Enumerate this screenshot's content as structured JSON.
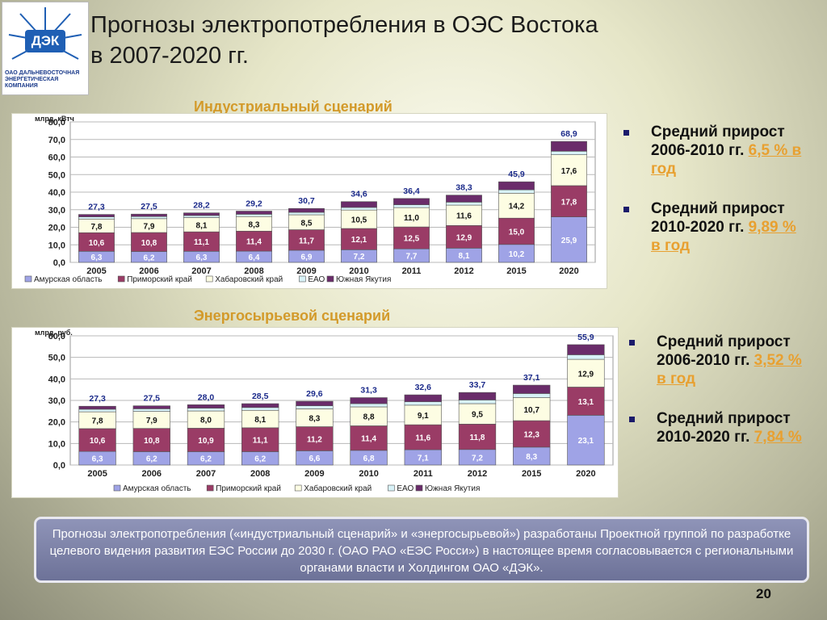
{
  "logo": {
    "abbr": "ДЭК",
    "caption": "ОАО Дальневосточная энергетическая компания"
  },
  "title": {
    "line1": "Прогнозы электропотребления в ОЭС Востока",
    "line2": "в 2007-2020 гг."
  },
  "scenarios": [
    {
      "title": "Индустриальный сценарий"
    },
    {
      "title": "Энергосырьевой сценарий"
    }
  ],
  "bullets_top": [
    {
      "text": "Средний прирост 2006-2010 гг. ",
      "value": "6,5 % в год"
    },
    {
      "text": "Средний прирост  2010-2020 гг. ",
      "value": "9,89 % в год"
    }
  ],
  "bullets_bottom": [
    {
      "text": "Средний прирост 2006-2010 гг. ",
      "value": "3,52 % в год"
    },
    {
      "text": "Средний прирост  2010-2020 гг. ",
      "value": "7,84 %"
    }
  ],
  "note": "Прогнозы электропотребления («индустриальный сценарий» и «энергосырьевой») разработаны Проектной группой по разработке целевого видения развития ЕЭС России до 2030 г. (ОАО РАО «ЕЭС Росси») в настоящее время согласовывается с региональными органами власти и Холдингом ОАО «ДЭК».",
  "page_number": "20",
  "chart_data": [
    {
      "type": "bar",
      "stacked": true,
      "ylabel": "млрд. кВтч",
      "ylim": [
        0,
        80
      ],
      "yticks": [
        "0,0",
        "10,0",
        "20,0",
        "30,0",
        "40,0",
        "50,0",
        "60,0",
        "70,0",
        "80,0"
      ],
      "categories": [
        "2005",
        "2006",
        "2007",
        "2008",
        "2009",
        "2010",
        "2011",
        "2012",
        "2015",
        "2020"
      ],
      "series": [
        {
          "name": "Амурская область",
          "color": "#9fa3e6",
          "labels": [
            "6,3",
            "6,2",
            "6,3",
            "6,4",
            "6,9",
            "7,2",
            "7,7",
            "8,1",
            "10,2",
            "25,9"
          ],
          "values": [
            6.3,
            6.2,
            6.3,
            6.4,
            6.9,
            7.2,
            7.7,
            8.1,
            10.2,
            25.9
          ]
        },
        {
          "name": "Приморский край",
          "color": "#9a3c66",
          "labels": [
            "10,6",
            "10,8",
            "11,1",
            "11,4",
            "11,7",
            "12,1",
            "12,5",
            "12,9",
            "15,0",
            "17,8"
          ],
          "values": [
            10.6,
            10.8,
            11.1,
            11.4,
            11.7,
            12.1,
            12.5,
            12.9,
            15.0,
            17.8
          ]
        },
        {
          "name": "Хабаровский край",
          "color": "#fdfde3",
          "labels": [
            "7,8",
            "7,9",
            "8,1",
            "8,3",
            "8,5",
            "10,5",
            "11,0",
            "11,6",
            "14,2",
            "17,6"
          ],
          "values": [
            7.8,
            7.9,
            8.1,
            8.3,
            8.5,
            10.5,
            11.0,
            11.6,
            14.2,
            17.6
          ]
        },
        {
          "name": "ЕАО",
          "color": "#d8f2f8",
          "labels": [],
          "values": [
            1.2,
            1.2,
            1.2,
            1.3,
            1.4,
            1.5,
            1.6,
            1.7,
            1.9,
            2.0
          ]
        },
        {
          "name": "Южная Якутия",
          "color": "#6a2c6a",
          "labels": [],
          "values": [
            1.4,
            1.4,
            1.5,
            1.8,
            2.2,
            3.3,
            3.6,
            4.0,
            4.6,
            5.6
          ]
        }
      ],
      "totals": [
        "27,3",
        "27,5",
        "28,2",
        "29,2",
        "30,7",
        "34,6",
        "36,4",
        "38,3",
        "45,9",
        "68,9"
      ],
      "legend_position": "bottom",
      "grid": true
    },
    {
      "type": "bar",
      "stacked": true,
      "ylabel": "млрд. руб.",
      "ylim": [
        0,
        60
      ],
      "yticks": [
        "0,0",
        "10,0",
        "20,0",
        "30,0",
        "40,0",
        "50,0",
        "60,0"
      ],
      "categories": [
        "2005",
        "2006",
        "2007",
        "2008",
        "2009",
        "2010",
        "2011",
        "2012",
        "2015",
        "2020"
      ],
      "series": [
        {
          "name": "Амурская область",
          "color": "#9fa3e6",
          "labels": [
            "6,3",
            "6,2",
            "6,2",
            "6,2",
            "6,6",
            "6,8",
            "7,1",
            "7,2",
            "8,3",
            "23,1"
          ],
          "values": [
            6.3,
            6.2,
            6.2,
            6.2,
            6.6,
            6.8,
            7.1,
            7.2,
            8.3,
            23.1
          ]
        },
        {
          "name": "Приморский край",
          "color": "#9a3c66",
          "labels": [
            "10,6",
            "10,8",
            "10,9",
            "11,1",
            "11,2",
            "11,4",
            "11,6",
            "11,8",
            "12,3",
            "13,1"
          ],
          "values": [
            10.6,
            10.8,
            10.9,
            11.1,
            11.2,
            11.4,
            11.6,
            11.8,
            12.3,
            13.1
          ]
        },
        {
          "name": "Хабаровский край",
          "color": "#fdfde3",
          "labels": [
            "7,8",
            "7,9",
            "8,0",
            "8,1",
            "8,3",
            "8,8",
            "9,1",
            "9,5",
            "10,7",
            "12,9"
          ],
          "values": [
            7.8,
            7.9,
            8.0,
            8.1,
            8.3,
            8.8,
            9.1,
            9.5,
            10.7,
            12.9
          ]
        },
        {
          "name": "ЕАО",
          "color": "#d8f2f8",
          "labels": [],
          "values": [
            1.2,
            1.2,
            1.3,
            1.3,
            1.4,
            1.5,
            1.6,
            1.7,
            1.9,
            2.1
          ]
        },
        {
          "name": "Южная Якутия",
          "color": "#6a2c6a",
          "labels": [],
          "values": [
            1.4,
            1.4,
            1.6,
            1.8,
            2.1,
            2.8,
            3.2,
            3.5,
            3.9,
            4.7
          ]
        }
      ],
      "totals": [
        "27,3",
        "27,5",
        "28,0",
        "28,5",
        "29,6",
        "31,3",
        "32,6",
        "33,7",
        "37,1",
        "55,9"
      ],
      "legend_position": "bottom",
      "grid": true
    }
  ]
}
